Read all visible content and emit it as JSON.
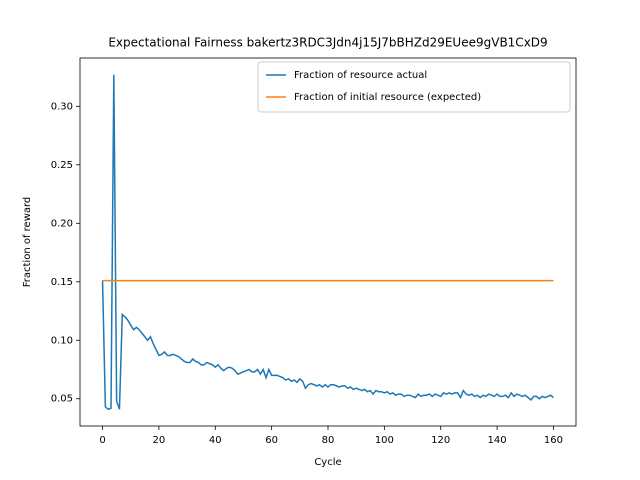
{
  "chart_data": {
    "type": "line",
    "title": "Expectational Fairness bakertz3RDC3Jdn4j15J7bBHZd29EUee9gVB1CxD9",
    "xlabel": "Cycle",
    "ylabel": "Fraction of reward",
    "x": [
      0,
      1,
      2,
      3,
      4,
      5,
      6,
      7,
      8,
      9,
      10,
      11,
      12,
      13,
      14,
      15,
      16,
      17,
      18,
      19,
      20,
      21,
      22,
      23,
      24,
      25,
      26,
      27,
      28,
      29,
      30,
      31,
      32,
      33,
      34,
      35,
      36,
      37,
      38,
      39,
      40,
      41,
      42,
      43,
      44,
      45,
      46,
      47,
      48,
      49,
      50,
      51,
      52,
      53,
      54,
      55,
      56,
      57,
      58,
      59,
      60,
      61,
      62,
      63,
      64,
      65,
      66,
      67,
      68,
      69,
      70,
      71,
      72,
      73,
      74,
      75,
      76,
      77,
      78,
      79,
      80,
      81,
      82,
      83,
      84,
      85,
      86,
      87,
      88,
      89,
      90,
      91,
      92,
      93,
      94,
      95,
      96,
      97,
      98,
      99,
      100,
      101,
      102,
      103,
      104,
      105,
      106,
      107,
      108,
      109,
      110,
      111,
      112,
      113,
      114,
      115,
      116,
      117,
      118,
      119,
      120,
      121,
      122,
      123,
      124,
      125,
      126,
      127,
      128,
      129,
      130,
      131,
      132,
      133,
      134,
      135,
      136,
      137,
      138,
      139,
      140,
      141,
      142,
      143,
      144,
      145,
      146,
      147,
      148,
      149,
      150,
      151,
      152,
      153,
      154,
      155,
      156,
      157,
      158,
      159,
      160
    ],
    "series": [
      {
        "name": "Fraction of resource actual",
        "color": "#1f77b4",
        "values": [
          0.151,
          0.043,
          0.041,
          0.042,
          0.327,
          0.048,
          0.041,
          0.122,
          0.12,
          0.117,
          0.113,
          0.109,
          0.111,
          0.109,
          0.106,
          0.103,
          0.1,
          0.103,
          0.097,
          0.092,
          0.087,
          0.088,
          0.09,
          0.087,
          0.087,
          0.088,
          0.087,
          0.086,
          0.084,
          0.082,
          0.081,
          0.081,
          0.084,
          0.082,
          0.081,
          0.079,
          0.079,
          0.081,
          0.08,
          0.079,
          0.077,
          0.079,
          0.076,
          0.074,
          0.076,
          0.077,
          0.076,
          0.074,
          0.071,
          0.072,
          0.073,
          0.074,
          0.075,
          0.073,
          0.073,
          0.075,
          0.071,
          0.075,
          0.068,
          0.075,
          0.07,
          0.07,
          0.07,
          0.069,
          0.068,
          0.066,
          0.067,
          0.065,
          0.066,
          0.064,
          0.067,
          0.065,
          0.059,
          0.062,
          0.063,
          0.062,
          0.061,
          0.062,
          0.06,
          0.062,
          0.06,
          0.062,
          0.062,
          0.061,
          0.06,
          0.061,
          0.061,
          0.059,
          0.06,
          0.058,
          0.059,
          0.058,
          0.057,
          0.058,
          0.056,
          0.057,
          0.054,
          0.057,
          0.056,
          0.056,
          0.055,
          0.056,
          0.054,
          0.055,
          0.053,
          0.054,
          0.054,
          0.052,
          0.053,
          0.053,
          0.052,
          0.051,
          0.054,
          0.052,
          0.053,
          0.053,
          0.054,
          0.052,
          0.054,
          0.053,
          0.052,
          0.055,
          0.054,
          0.055,
          0.054,
          0.055,
          0.055,
          0.051,
          0.057,
          0.054,
          0.053,
          0.054,
          0.052,
          0.053,
          0.051,
          0.053,
          0.052,
          0.054,
          0.053,
          0.052,
          0.054,
          0.052,
          0.052,
          0.053,
          0.051,
          0.055,
          0.052,
          0.054,
          0.053,
          0.052,
          0.053,
          0.051,
          0.049,
          0.052,
          0.052,
          0.05,
          0.052,
          0.051,
          0.052,
          0.053,
          0.051
        ]
      },
      {
        "name": "Fraction of initial resource (expected)",
        "color": "#ff7f0e",
        "values": [
          0.151,
          0.151,
          0.151,
          0.151,
          0.151,
          0.151,
          0.151,
          0.151,
          0.151,
          0.151,
          0.151,
          0.151,
          0.151,
          0.151,
          0.151,
          0.151,
          0.151,
          0.151,
          0.151,
          0.151,
          0.151,
          0.151,
          0.151,
          0.151,
          0.151,
          0.151,
          0.151,
          0.151,
          0.151,
          0.151,
          0.151,
          0.151,
          0.151,
          0.151,
          0.151,
          0.151,
          0.151,
          0.151,
          0.151,
          0.151,
          0.151,
          0.151,
          0.151,
          0.151,
          0.151,
          0.151,
          0.151,
          0.151,
          0.151,
          0.151,
          0.151,
          0.151,
          0.151,
          0.151,
          0.151,
          0.151,
          0.151,
          0.151,
          0.151,
          0.151,
          0.151,
          0.151,
          0.151,
          0.151,
          0.151,
          0.151,
          0.151,
          0.151,
          0.151,
          0.151,
          0.151,
          0.151,
          0.151,
          0.151,
          0.151,
          0.151,
          0.151,
          0.151,
          0.151,
          0.151,
          0.151,
          0.151,
          0.151,
          0.151,
          0.151,
          0.151,
          0.151,
          0.151,
          0.151,
          0.151,
          0.151,
          0.151,
          0.151,
          0.151,
          0.151,
          0.151,
          0.151,
          0.151,
          0.151,
          0.151,
          0.151,
          0.151,
          0.151,
          0.151,
          0.151,
          0.151,
          0.151,
          0.151,
          0.151,
          0.151,
          0.151,
          0.151,
          0.151,
          0.151,
          0.151,
          0.151,
          0.151,
          0.151,
          0.151,
          0.151,
          0.151,
          0.151,
          0.151,
          0.151,
          0.151,
          0.151,
          0.151,
          0.151,
          0.151,
          0.151,
          0.151,
          0.151,
          0.151,
          0.151,
          0.151,
          0.151,
          0.151,
          0.151,
          0.151,
          0.151,
          0.151,
          0.151,
          0.151,
          0.151,
          0.151,
          0.151,
          0.151,
          0.151,
          0.151,
          0.151,
          0.151,
          0.151,
          0.151,
          0.151,
          0.151,
          0.151,
          0.151,
          0.151,
          0.151,
          0.151,
          0.151
        ]
      }
    ],
    "xlim": [
      -8,
      168
    ],
    "xticks": [
      0,
      20,
      40,
      60,
      80,
      100,
      120,
      140,
      160
    ],
    "ylim": [
      0.0267,
      0.3413
    ],
    "yticks": [
      {
        "value": 0.05,
        "label": "0.05"
      },
      {
        "value": 0.1,
        "label": "0.10"
      },
      {
        "value": 0.15,
        "label": "0.15"
      },
      {
        "value": 0.2,
        "label": "0.20"
      },
      {
        "value": 0.25,
        "label": "0.25"
      },
      {
        "value": 0.3,
        "label": "0.30"
      }
    ],
    "legend": "upper right",
    "grid": false
  }
}
